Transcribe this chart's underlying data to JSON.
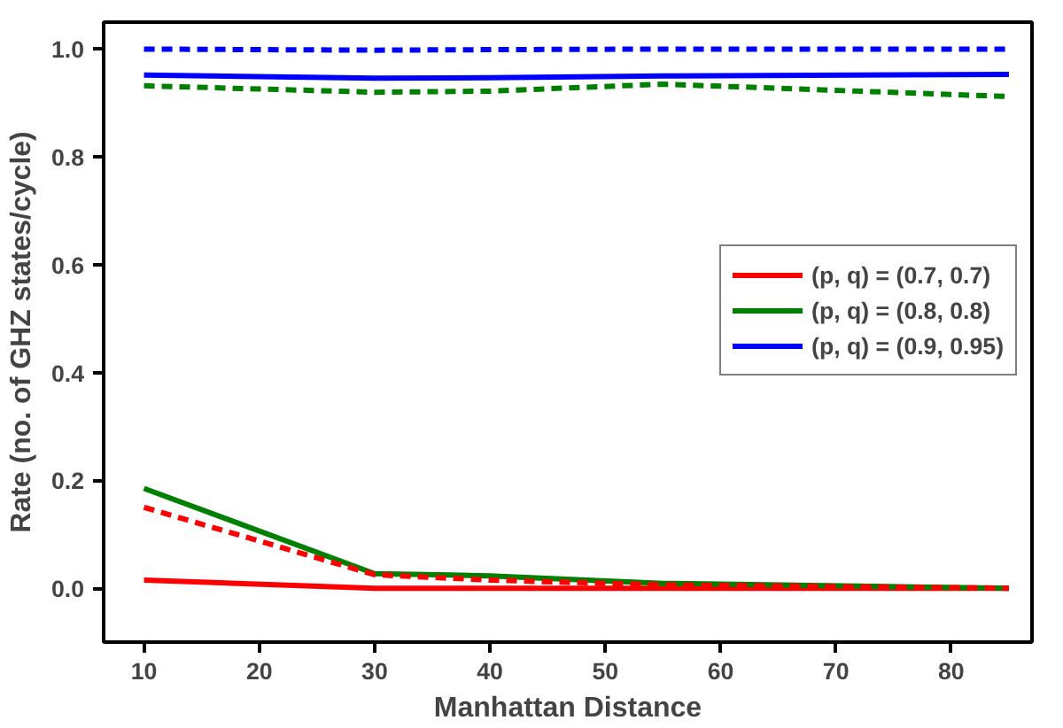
{
  "chart_data": {
    "type": "line",
    "xlabel": "Manhattan Distance",
    "ylabel": "Rate (no. of GHZ states/cycle)",
    "xlim": [
      6.5,
      87
    ],
    "ylim": [
      -0.1,
      1.05
    ],
    "xticks": [
      10,
      20,
      30,
      40,
      50,
      60,
      70,
      80
    ],
    "yticks": [
      {
        "value": 0,
        "label": "0.0"
      },
      {
        "value": 0.2,
        "label": "0.2"
      },
      {
        "value": 0.4,
        "label": "0.4"
      },
      {
        "value": 0.6,
        "label": "0.6"
      },
      {
        "value": 0.8,
        "label": "0.8"
      },
      {
        "value": 1,
        "label": "1.0"
      }
    ],
    "grid": false,
    "legend": "right",
    "marker": "none",
    "x": [
      10,
      30,
      40,
      55,
      85
    ],
    "series": [
      {
        "name": "(p, q) = (0.7, 0.7)",
        "color": "#ff0000",
        "values": [
          0.015,
          0.0,
          0.0,
          0.0,
          0.0
        ],
        "line_style": "solid"
      },
      {
        "name": "(p, q) = (0.8, 0.8)",
        "color": "#008000",
        "values": [
          0.185,
          0.027,
          0.023,
          0.009,
          0.0
        ],
        "line_style": "solid"
      },
      {
        "name": "(p, q) = (0.9, 0.95)",
        "color": "#0000ff",
        "values": [
          0.952,
          0.946,
          0.947,
          0.95,
          0.953
        ],
        "line_style": "solid"
      },
      {
        "color": "#ff0000",
        "values": [
          0.15,
          0.025,
          0.015,
          0.006,
          0.0
        ],
        "line_style": "dashed"
      },
      {
        "color": "#008000",
        "values": [
          0.932,
          0.92,
          0.922,
          0.935,
          0.912
        ],
        "line_style": "dashed"
      },
      {
        "color": "#0000ff",
        "values": [
          1.0,
          0.998,
          0.999,
          1.0,
          1.0
        ],
        "line_style": "dashed"
      }
    ]
  }
}
